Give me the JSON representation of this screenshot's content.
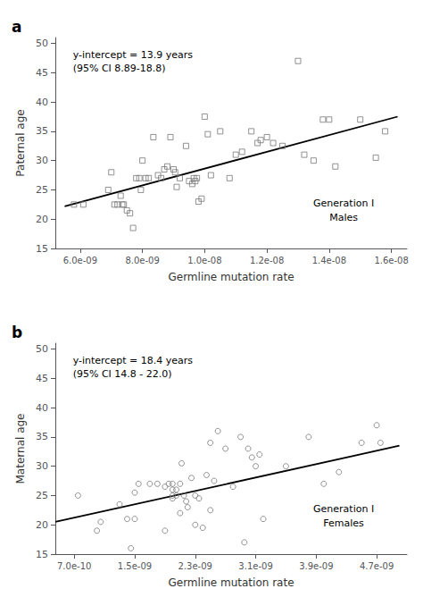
{
  "chart_data": [
    {
      "type": "scatter",
      "title": "a",
      "annotations": [
        "y-intercept = 13.9 years\n(95% CI 8.89-18.8)",
        "Generation I\nMales"
      ],
      "xlabel": "Germline mutation rate",
      "ylabel": "Paternal age",
      "xlim": [
        5.2e-09,
        1.65e-08
      ],
      "ylim": [
        15,
        51
      ],
      "xticks": [
        {
          "value": 6e-09,
          "label": "6.0e-09"
        },
        {
          "value": 8e-09,
          "label": "8.0e-09"
        },
        {
          "value": 1e-08,
          "label": "1.0e-08"
        },
        {
          "value": 1.2e-08,
          "label": "1.2e-08"
        },
        {
          "value": 1.4e-08,
          "label": "1.4e-08"
        },
        {
          "value": 1.6e-08,
          "label": "1.6e-08"
        }
      ],
      "yticks": [
        15,
        20,
        25,
        30,
        35,
        40,
        45,
        50
      ],
      "grid": false,
      "series": [
        {
          "type": "scatter",
          "marker": "square",
          "color": "#777777",
          "x": [
            5.8e-09,
            6.1e-09,
            6.9e-09,
            7e-09,
            7.1e-09,
            7.2e-09,
            7.3e-09,
            7.35e-09,
            7.4e-09,
            7.5e-09,
            7.6e-09,
            7.7e-09,
            7.8e-09,
            7.9e-09,
            7.95e-09,
            8e-09,
            8.1e-09,
            8.2e-09,
            8.35e-09,
            8.5e-09,
            8.6e-09,
            8.7e-09,
            8.8e-09,
            8.9e-09,
            9e-09,
            9.05e-09,
            9.1e-09,
            9.2e-09,
            9.4e-09,
            9.5e-09,
            9.6e-09,
            9.65e-09,
            9.7e-09,
            9.75e-09,
            9.8e-09,
            9.9e-09,
            1e-08,
            1.01e-08,
            1.02e-08,
            1.05e-08,
            1.08e-08,
            1.1e-08,
            1.12e-08,
            1.15e-08,
            1.17e-08,
            1.18e-08,
            1.2e-08,
            1.22e-08,
            1.25e-08,
            1.3e-08,
            1.32e-08,
            1.35e-08,
            1.38e-08,
            1.4e-08,
            1.42e-08,
            1.5e-08,
            1.55e-08,
            1.58e-08
          ],
          "values": [
            22.5,
            22.5,
            25.0,
            28.0,
            22.5,
            22.5,
            24.0,
            22.5,
            22.5,
            21.5,
            21.0,
            18.5,
            27.0,
            27.0,
            25.0,
            30.0,
            27.0,
            27.0,
            34.0,
            27.5,
            27.0,
            28.5,
            29.0,
            34.0,
            28.5,
            28.0,
            25.5,
            27.0,
            32.5,
            26.5,
            26.0,
            27.0,
            26.5,
            27.0,
            23.0,
            23.5,
            37.5,
            34.5,
            27.5,
            35.0,
            27.0,
            31.0,
            31.5,
            35.0,
            33.0,
            33.5,
            34.0,
            33.0,
            32.5,
            47.0,
            31.0,
            30.0,
            37.0,
            37.0,
            29.0,
            37.0,
            30.5,
            35.0
          ]
        },
        {
          "type": "line",
          "color": "#000000",
          "x": [
            5.5e-09,
            1.62e-08
          ],
          "values": [
            22.2,
            37.5
          ]
        }
      ]
    },
    {
      "type": "scatter",
      "title": "b",
      "annotations": [
        "y-intercept = 18.4 years\n(95% CI 14.8 - 22.0)",
        "Generation I\nFemales"
      ],
      "xlabel": "Germline mutation rate",
      "ylabel": "Maternal age",
      "xlim": [
        4.5e-10,
        5.1e-09
      ],
      "ylim": [
        15,
        51
      ],
      "xticks": [
        {
          "value": 7e-10,
          "label": "7.0e-10"
        },
        {
          "value": 1.5e-09,
          "label": "1.5e-09"
        },
        {
          "value": 2.3e-09,
          "label": "2.3e-09"
        },
        {
          "value": 3.1e-09,
          "label": "3.1e-09"
        },
        {
          "value": 3.9e-09,
          "label": "3.9e-09"
        },
        {
          "value": 4.7e-09,
          "label": "4.7e-09"
        }
      ],
      "yticks": [
        15,
        20,
        25,
        30,
        35,
        40,
        45,
        50
      ],
      "grid": false,
      "series": [
        {
          "type": "scatter",
          "marker": "circle",
          "color": "#777777",
          "x": [
            7.5e-10,
            1e-09,
            1.05e-09,
            1.3e-09,
            1.4e-09,
            1.45e-09,
            1.5e-09,
            1.5e-09,
            1.55e-09,
            1.7e-09,
            1.8e-09,
            1.9e-09,
            1.9e-09,
            1.95e-09,
            2e-09,
            2e-09,
            2e-09,
            2e-09,
            2.05e-09,
            2.05e-09,
            2.1e-09,
            2.1e-09,
            2.12e-09,
            2.15e-09,
            2.18e-09,
            2.2e-09,
            2.25e-09,
            2.3e-09,
            2.3e-09,
            2.35e-09,
            2.4e-09,
            2.45e-09,
            2.5e-09,
            2.5e-09,
            2.55e-09,
            2.6e-09,
            2.7e-09,
            2.8e-09,
            2.9e-09,
            2.95e-09,
            3e-09,
            3.05e-09,
            3.1e-09,
            3.15e-09,
            3.2e-09,
            3.5e-09,
            3.8e-09,
            4e-09,
            4.2e-09,
            4.5e-09,
            4.7e-09,
            4.75e-09
          ],
          "values": [
            25.0,
            19.0,
            20.5,
            23.5,
            21.0,
            16.0,
            21.0,
            25.5,
            27.0,
            27.0,
            27.0,
            19.0,
            26.5,
            27.0,
            27.0,
            26.0,
            25.0,
            24.5,
            25.0,
            26.0,
            22.0,
            27.0,
            30.5,
            25.0,
            24.0,
            23.0,
            28.0,
            20.0,
            25.0,
            24.5,
            19.5,
            28.5,
            34.0,
            22.5,
            27.5,
            36.0,
            33.0,
            26.5,
            35.0,
            17.0,
            33.0,
            31.5,
            30.0,
            32.0,
            21.0,
            30.0,
            35.0,
            27.0,
            29.0,
            34.0,
            37.0,
            34.0
          ]
        },
        {
          "type": "line",
          "color": "#000000",
          "x": [
            4.5e-10,
            5e-09
          ],
          "values": [
            20.5,
            33.5
          ]
        }
      ]
    }
  ]
}
